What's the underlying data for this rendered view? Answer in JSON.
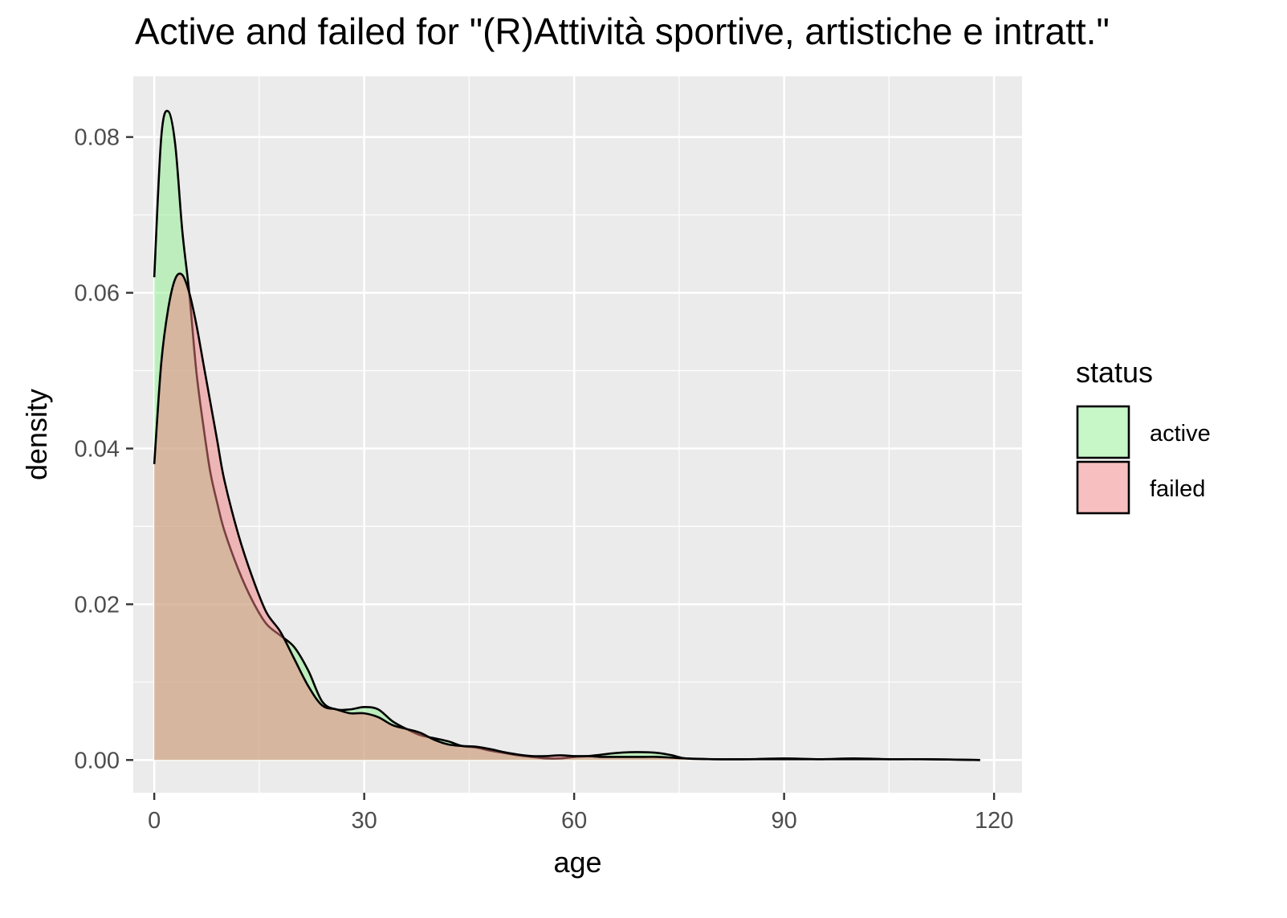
{
  "chart_data": {
    "type": "area",
    "title": "Active and failed for \"(R)Attività sportive, artistiche e intratt.\"",
    "xlabel": "age",
    "ylabel": "density",
    "xlim": [
      -3,
      124
    ],
    "ylim": [
      -0.0042,
      0.0878
    ],
    "x_ticks": [
      0,
      30,
      60,
      90,
      120
    ],
    "x_tick_labels": [
      "0",
      "30",
      "60",
      "90",
      "120"
    ],
    "y_ticks": [
      0.0,
      0.02,
      0.04,
      0.06,
      0.08
    ],
    "y_tick_labels": [
      "0.00",
      "0.02",
      "0.04",
      "0.06",
      "0.08"
    ],
    "grid": true,
    "legend": {
      "title": "status",
      "position": "right"
    },
    "series": [
      {
        "name": "active",
        "color": "#90EE90",
        "x": [
          0,
          1,
          2,
          3,
          4,
          5,
          6,
          7,
          8,
          9,
          10,
          12,
          14,
          16,
          18,
          20,
          22,
          24,
          26,
          28,
          30,
          32,
          34,
          36,
          38,
          40,
          42,
          44,
          46,
          48,
          50,
          52,
          54,
          56,
          58,
          60,
          62,
          64,
          66,
          68,
          70,
          72,
          74,
          76,
          80,
          85,
          90,
          95,
          100,
          105,
          110,
          118
        ],
        "y": [
          0.062,
          0.08,
          0.0833,
          0.079,
          0.068,
          0.06,
          0.05,
          0.043,
          0.037,
          0.033,
          0.0295,
          0.0245,
          0.0205,
          0.0175,
          0.016,
          0.0145,
          0.0115,
          0.0075,
          0.0065,
          0.0065,
          0.0068,
          0.0065,
          0.005,
          0.004,
          0.0032,
          0.0028,
          0.0024,
          0.0018,
          0.0016,
          0.0012,
          0.0009,
          0.0006,
          0.0004,
          0.0002,
          0.0002,
          0.0004,
          0.0005,
          0.0007,
          0.0009,
          0.001,
          0.001,
          0.0009,
          0.0006,
          0.0002,
          0.0001,
          0.0001,
          0.0002,
          0.0001,
          0.0002,
          0.0001,
          0.0001,
          0.0
        ]
      },
      {
        "name": "failed",
        "color": "#F08080",
        "x": [
          0,
          1,
          2,
          3,
          4,
          5,
          6,
          7,
          8,
          9,
          10,
          12,
          14,
          16,
          18,
          20,
          22,
          24,
          26,
          28,
          30,
          32,
          34,
          36,
          38,
          40,
          42,
          44,
          46,
          48,
          50,
          52,
          54,
          56,
          58,
          60,
          62,
          64,
          66,
          68,
          70,
          72,
          74,
          76,
          80,
          85,
          90,
          95,
          100,
          105,
          110,
          118
        ],
        "y": [
          0.038,
          0.051,
          0.058,
          0.0618,
          0.0623,
          0.06,
          0.056,
          0.051,
          0.046,
          0.041,
          0.036,
          0.029,
          0.0235,
          0.019,
          0.0165,
          0.013,
          0.0095,
          0.007,
          0.0065,
          0.006,
          0.006,
          0.0055,
          0.0045,
          0.004,
          0.0035,
          0.0026,
          0.002,
          0.0018,
          0.0017,
          0.0014,
          0.001,
          0.0007,
          0.0005,
          0.0005,
          0.0006,
          0.0005,
          0.0005,
          0.0004,
          0.0004,
          0.0004,
          0.0004,
          0.0004,
          0.0003,
          0.0002,
          0.0001,
          0.0001,
          0.0001,
          0.0001,
          0.0001,
          0.0001,
          0.0001,
          0.0
        ]
      }
    ]
  }
}
